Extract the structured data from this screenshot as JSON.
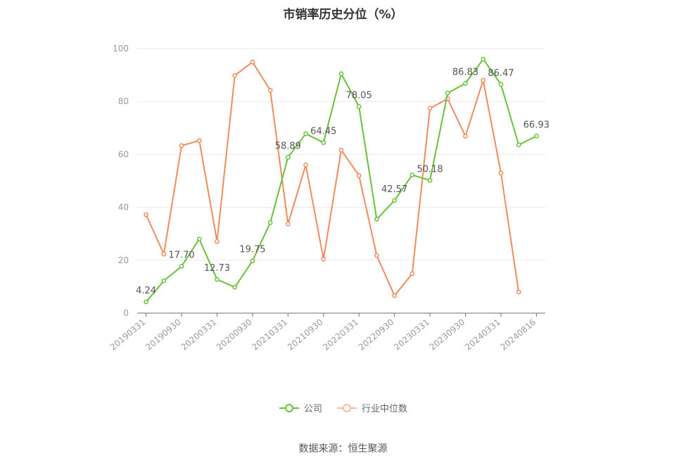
{
  "chart_data": {
    "type": "line",
    "title": "市销率历史分位（%）",
    "ylim": [
      0,
      100
    ],
    "yticks": [
      0,
      20,
      40,
      60,
      80,
      100
    ],
    "grid": true,
    "legend_position": "bottom",
    "x": [
      "20190331",
      "20190630",
      "20190930",
      "20191231",
      "20200331",
      "20200630",
      "20200930",
      "20201231",
      "20210331",
      "20210630",
      "20210930",
      "20211231",
      "20220331",
      "20220630",
      "20220930",
      "20221231",
      "20230331",
      "20230630",
      "20230930",
      "20231231",
      "20240331",
      "20240630",
      "20240816"
    ],
    "xtick_labels": [
      "20190331",
      "20190930",
      "20200331",
      "20200930",
      "20210331",
      "20210930",
      "20220331",
      "20220930",
      "20230331",
      "20230930",
      "20240331",
      "20240816"
    ],
    "series": [
      {
        "name": "公司",
        "color": "#67c23a",
        "values": [
          4.24,
          12.2,
          17.7,
          28.0,
          12.73,
          9.8,
          19.75,
          34.2,
          58.89,
          67.8,
          64.45,
          90.5,
          78.05,
          35.5,
          42.57,
          52.2,
          50.18,
          83.2,
          86.83,
          96.0,
          86.47,
          63.6,
          66.93
        ],
        "labels": {
          "0": "4.24",
          "2": "17.70",
          "4": "12.73",
          "6": "19.75",
          "8": "58.89",
          "10": "64.45",
          "12": "78.05",
          "14": "42.57",
          "16": "50.18",
          "18": "86.83",
          "20": "86.47",
          "22": "66.93"
        }
      },
      {
        "name": "行业中位数",
        "color": "#f28b5c",
        "values": [
          37.2,
          22.3,
          63.3,
          65.2,
          27.1,
          89.8,
          94.9,
          84.2,
          33.7,
          56.0,
          20.4,
          61.6,
          52.0,
          21.8,
          6.6,
          14.9,
          77.4,
          81.0,
          66.9,
          88.0,
          53.0,
          8.0,
          null
        ]
      }
    ]
  },
  "legend": {
    "company": "公司",
    "industry": "行业中位数"
  },
  "footer": {
    "source": "数据来源：恒生聚源"
  }
}
